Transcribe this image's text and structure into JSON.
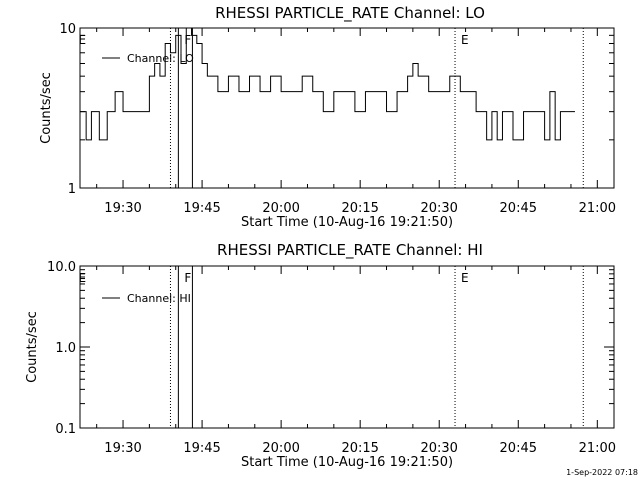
{
  "chart_data": [
    {
      "type": "line",
      "title": "RHESSI PARTICLE_RATE Channel: LO",
      "xlabel": "Start Time (10-Aug-16 19:21:50)",
      "ylabel": "Counts/sec",
      "y_scale": "log",
      "ylim": [
        1,
        10
      ],
      "xlim": [
        "19:21:50",
        "21:03:10"
      ],
      "x_ticks": [
        "19:30",
        "19:45",
        "20:00",
        "20:15",
        "20:30",
        "20:45",
        "21:00"
      ],
      "y_ticks": [
        "1",
        "10"
      ],
      "legend": {
        "position": "top-left",
        "entries": [
          "Channel: LO"
        ]
      },
      "series": [
        {
          "name": "Channel: LO",
          "x": [
            "19:21:50",
            "19:22:30",
            "19:23:00",
            "19:24:00",
            "19:25:00",
            "19:25:30",
            "19:26:00",
            "19:27:00",
            "19:27:30",
            "19:28:30",
            "19:30:00",
            "19:33:00",
            "19:34:00",
            "19:35:00",
            "19:36:00",
            "19:37:00",
            "19:38:00",
            "19:39:00",
            "19:40:00",
            "19:41:00",
            "19:42:00",
            "19:43:00",
            "19:44:00",
            "19:45:00",
            "19:46:00",
            "19:47:00",
            "19:48:00",
            "19:50:00",
            "19:52:00",
            "19:54:00",
            "19:56:00",
            "19:58:00",
            "20:00:00",
            "20:02:00",
            "20:04:00",
            "20:06:00",
            "20:08:00",
            "20:10:00",
            "20:12:00",
            "20:14:00",
            "20:16:00",
            "20:18:00",
            "20:20:00",
            "20:22:00",
            "20:24:00",
            "20:25:00",
            "20:26:00",
            "20:28:00",
            "20:30:00",
            "20:32:00",
            "20:34:00",
            "20:36:00",
            "20:37:00",
            "20:38:00",
            "20:39:00",
            "20:40:00",
            "20:41:00",
            "20:42:00",
            "20:44:00",
            "20:46:00",
            "20:48:00",
            "20:50:00",
            "20:51:00",
            "20:52:00",
            "20:53:00",
            "20:55:00"
          ],
          "values": [
            3,
            3,
            2,
            3,
            3,
            2,
            2,
            3,
            3,
            4,
            3,
            3,
            3,
            5,
            6,
            5,
            8,
            7,
            9,
            6,
            10,
            9,
            8,
            6,
            5,
            5,
            4,
            5,
            4,
            5,
            4,
            5,
            4,
            4,
            5,
            4,
            3,
            4,
            4,
            3,
            4,
            4,
            3,
            4,
            5,
            6,
            5,
            4,
            4,
            5,
            4,
            4,
            3,
            3,
            2,
            3,
            2,
            3,
            2,
            3,
            3,
            2,
            4,
            2,
            3,
            3
          ]
        }
      ],
      "annotations": [
        "E",
        "F",
        "E"
      ]
    },
    {
      "type": "line",
      "title": "RHESSI PARTICLE_RATE Channel: HI",
      "xlabel": "Start Time (10-Aug-16 19:21:50)",
      "ylabel": "Counts/sec",
      "y_scale": "log",
      "ylim": [
        0.1,
        10.0
      ],
      "xlim": [
        "19:21:50",
        "21:03:10"
      ],
      "x_ticks": [
        "19:30",
        "19:45",
        "20:00",
        "20:15",
        "20:30",
        "20:45",
        "21:00"
      ],
      "y_ticks": [
        "0.1",
        "1.0",
        "10.0"
      ],
      "legend": {
        "position": "top-left",
        "entries": [
          "Channel: HI"
        ]
      },
      "series": [
        {
          "name": "Channel: HI",
          "x": [],
          "values": []
        }
      ],
      "annotations": [
        "E",
        "F",
        "E"
      ]
    }
  ],
  "footer": {
    "timestamp": "1-Sep-2022 07:18"
  }
}
